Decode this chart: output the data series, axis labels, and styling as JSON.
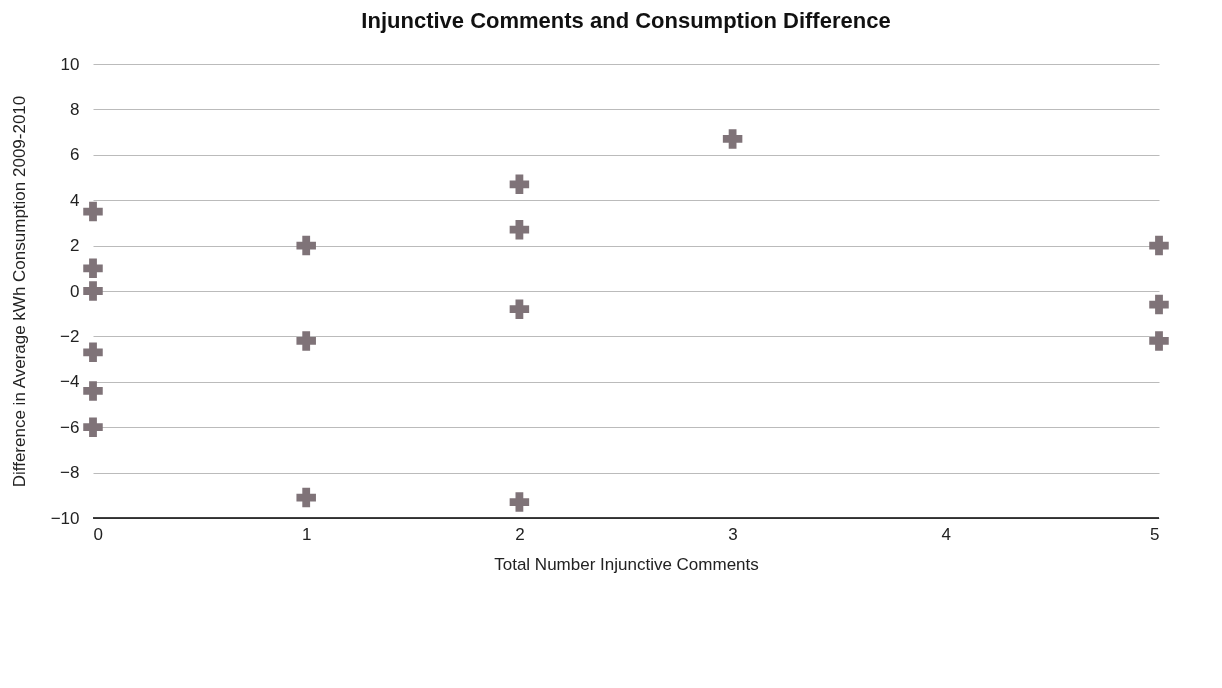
{
  "chart_data": {
    "type": "scatter",
    "title": "Injunctive Comments and Consumption Difference",
    "xlabel": "Total Number Injunctive Comments",
    "ylabel": "Difference in Average kWh Consumption 2009-2010",
    "x": [
      0,
      0,
      0,
      0,
      0,
      0,
      1,
      1,
      1,
      2,
      2,
      2,
      2,
      3,
      5,
      5,
      5
    ],
    "series": [
      {
        "color": "#7f7378",
        "values": [
          3.5,
          1.0,
          0,
          -2.7,
          -4.4,
          -6.0,
          2.0,
          -2.2,
          -9.1,
          4.7,
          2.7,
          -0.8,
          -9.3,
          6.7,
          2.0,
          -0.6,
          -2.2
        ]
      }
    ],
    "xlim": [
      0,
      5
    ],
    "xticks": [
      0,
      1,
      2,
      3,
      4,
      5
    ],
    "ylim": [
      -10,
      10
    ],
    "yticks": [
      -10,
      -8,
      -6,
      -4,
      -2,
      0,
      2,
      4,
      6,
      8,
      10
    ],
    "grid": "y",
    "marker": "cross"
  }
}
